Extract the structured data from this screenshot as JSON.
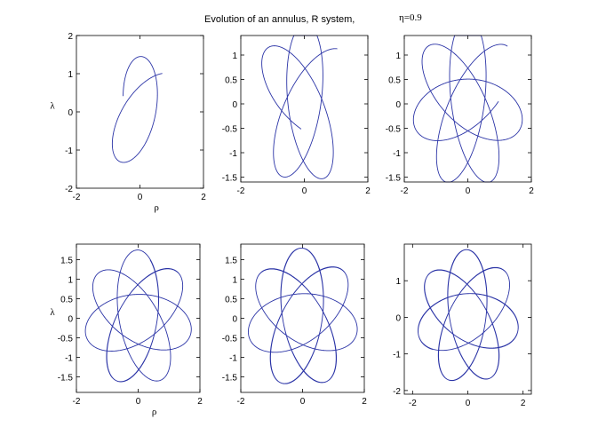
{
  "figure": {
    "title": "Evolution of an annulus, R system,",
    "eta_label": "η=0.9"
  },
  "colors": {
    "curve": "#2a33a6"
  },
  "chart_data": [
    {
      "type": "line",
      "xlabel": "ρ",
      "ylabel": "λ",
      "xlim": [
        -2,
        2
      ],
      "ylim": [
        -2,
        2
      ],
      "xticks": [
        -2,
        0,
        2
      ],
      "yticks": [
        -2,
        -1,
        0,
        1,
        2
      ],
      "xtick_labels": [
        "-2",
        "0",
        "2"
      ],
      "ytick_labels": [
        "-2",
        "-1",
        "0",
        "1",
        "2"
      ],
      "grid": false,
      "curve": {
        "loops": 1.1,
        "phase": 0.6,
        "x_amp": 1.45,
        "y_amp": 1.4,
        "tilt_deg": 42
      }
    },
    {
      "type": "line",
      "xlabel": "",
      "ylabel": "",
      "xlim": [
        -2,
        2
      ],
      "ylim": [
        -1.6,
        1.4
      ],
      "xticks": [
        -2,
        0,
        2
      ],
      "yticks": [
        -1.5,
        -1,
        -0.5,
        0,
        0.5,
        1
      ],
      "xtick_labels": [
        "-2",
        "0",
        "2"
      ],
      "ytick_labels": [
        "-1.5",
        "-1",
        "-0.5",
        "0",
        "0.5",
        "1"
      ],
      "grid": false,
      "curve": {
        "loops": 2.2,
        "phase": 0.4,
        "x_amp": 1.65,
        "y_amp": 1.45,
        "tilt_deg": 40
      }
    },
    {
      "type": "line",
      "xlabel": "",
      "ylabel": "",
      "xlim": [
        -2,
        2
      ],
      "ylim": [
        -1.6,
        1.4
      ],
      "xticks": [
        -2,
        0,
        2
      ],
      "yticks": [
        -1.5,
        -1,
        -0.5,
        0,
        0.5,
        1
      ],
      "xtick_labels": [
        "-2",
        "0",
        "2"
      ],
      "ytick_labels": [
        "-1.5",
        "-1",
        "-0.5",
        "0",
        "0.5",
        "1"
      ],
      "grid": false,
      "curve": {
        "loops": 3.3,
        "phase": 0.2,
        "x_amp": 1.75,
        "y_amp": 1.45,
        "tilt_deg": 40
      }
    },
    {
      "type": "line",
      "xlabel": "ρ",
      "ylabel": "λ",
      "xlim": [
        -2,
        2
      ],
      "ylim": [
        -1.9,
        1.9
      ],
      "xticks": [
        -2,
        0,
        2
      ],
      "yticks": [
        -1.5,
        -1,
        -0.5,
        0,
        0.5,
        1,
        1.5
      ],
      "xtick_labels": [
        "-2",
        "0",
        "2"
      ],
      "ytick_labels": [
        "-1.5",
        "-1",
        "-0.5",
        "0",
        "0.5",
        "1",
        "1.5"
      ],
      "grid": false,
      "curve": {
        "loops": 4.4,
        "phase": 0.1,
        "x_amp": 1.75,
        "y_amp": 1.75,
        "tilt_deg": 40
      }
    },
    {
      "type": "line",
      "xlabel": "",
      "ylabel": "",
      "xlim": [
        -2,
        2
      ],
      "ylim": [
        -1.9,
        1.9
      ],
      "xticks": [
        -2,
        0,
        2
      ],
      "yticks": [
        -1.5,
        -1,
        -0.5,
        0,
        0.5,
        1,
        1.5
      ],
      "xtick_labels": [
        "-2",
        "0",
        "2"
      ],
      "ytick_labels": [
        "-1.5",
        "-1",
        "-0.5",
        "0",
        "0.5",
        "1",
        "1.5"
      ],
      "grid": false,
      "curve": {
        "loops": 5.5,
        "phase": 0.05,
        "x_amp": 1.8,
        "y_amp": 1.8,
        "tilt_deg": 40
      }
    },
    {
      "type": "line",
      "xlabel": "",
      "ylabel": "",
      "xlim": [
        -2.3,
        2.3
      ],
      "ylim": [
        -2.1,
        2.0
      ],
      "xticks": [
        -2,
        0,
        2
      ],
      "yticks": [
        -2,
        -1,
        0,
        1
      ],
      "xtick_labels": [
        "-2",
        "0",
        "2"
      ],
      "ytick_labels": [
        "-2",
        "-1",
        "0",
        "1"
      ],
      "grid": false,
      "curve": {
        "loops": 6.6,
        "phase": 0.0,
        "x_amp": 1.85,
        "y_amp": 1.85,
        "tilt_deg": 40
      }
    }
  ]
}
